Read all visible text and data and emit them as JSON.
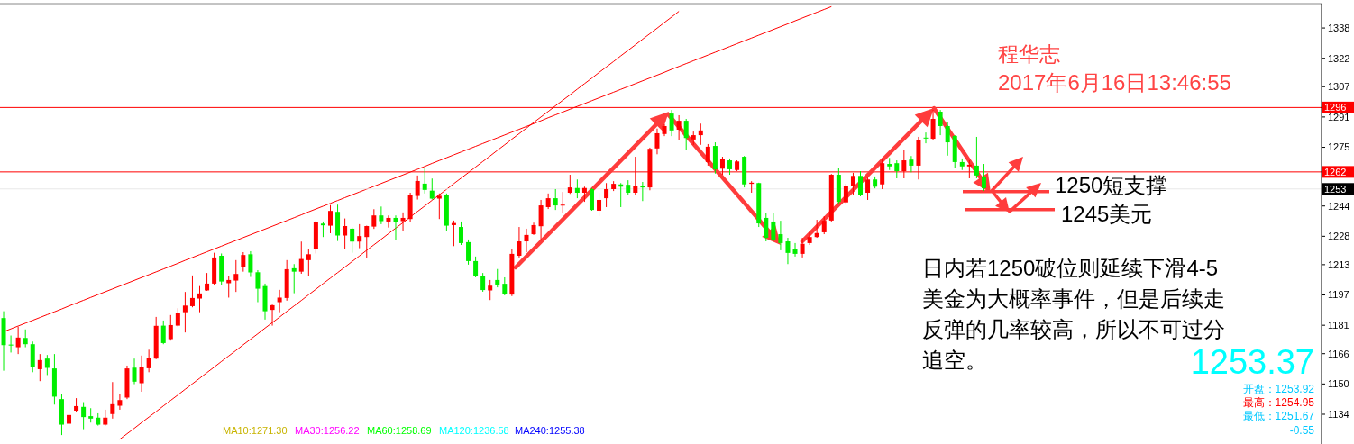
{
  "chart_data": {
    "type": "candlestick",
    "categories": [
      null,
      null,
      null,
      null,
      null,
      null,
      null,
      null,
      null,
      null,
      null,
      null,
      null,
      null,
      null,
      null,
      null,
      null,
      null,
      null,
      null,
      null,
      null,
      null,
      null,
      null,
      null,
      null,
      null,
      null,
      null,
      null,
      null,
      null,
      null,
      null,
      null,
      null,
      null,
      null,
      null,
      null,
      null,
      null,
      null,
      null,
      null,
      null,
      null,
      null,
      null,
      null,
      null,
      null,
      null,
      null,
      null,
      null,
      null,
      null,
      null,
      null,
      null,
      null,
      null,
      null,
      null,
      null,
      null,
      null,
      null,
      null,
      null,
      null,
      null,
      null,
      null,
      null,
      null,
      null,
      null,
      null,
      null,
      null,
      null,
      null,
      null,
      null,
      null,
      null,
      null,
      null,
      null,
      null,
      null,
      null,
      null,
      null,
      null,
      null,
      null,
      null,
      null,
      null,
      null,
      null,
      null,
      null,
      null,
      null,
      null,
      null,
      null,
      null,
      null,
      null,
      null,
      null,
      null,
      null,
      null,
      null,
      null,
      null,
      null,
      null,
      null,
      null,
      null,
      null,
      null,
      null,
      null,
      null,
      null,
      null,
      null,
      null,
      null,
      null,
      null,
      null,
      null,
      null,
      null,
      null,
      null,
      null,
      null,
      null,
      null,
      null,
      null,
      null,
      null,
      null,
      null,
      null,
      null,
      null,
      null,
      null,
      null,
      null,
      null,
      null,
      null,
      null,
      null,
      null,
      null,
      null,
      null,
      null,
      null,
      null,
      null,
      null,
      null,
      null,
      null,
      null
    ],
    "ohlc": [
      [
        1184.8,
        1188.4,
        1157.0,
        1170.5
      ],
      [
        1170.8,
        1175.6,
        1166.6,
        1170.3
      ],
      [
        1169.4,
        1180.3,
        1165.8,
        1174.5
      ],
      [
        1174.3,
        1178.8,
        1169.4,
        1171.0
      ],
      [
        1171.0,
        1172.4,
        1156.2,
        1158.9
      ],
      [
        1157.8,
        1165.8,
        1151.5,
        1162.6
      ],
      [
        1163.4,
        1165.3,
        1154.7,
        1158.5
      ],
      [
        1158.2,
        1165.8,
        1139.1,
        1143.3
      ],
      [
        1142.0,
        1144.8,
        1123.0,
        1128.5
      ],
      [
        1129.0,
        1141.7,
        1126.6,
        1133.6
      ],
      [
        1135.9,
        1142.5,
        1135.2,
        1138.3
      ],
      [
        1137.9,
        1140.4,
        1126.1,
        1132.5
      ],
      [
        1133.0,
        1137.2,
        1129.6,
        1131.7
      ],
      [
        1132.2,
        1134.5,
        1128.0,
        1128.5
      ],
      [
        1128.5,
        1136.4,
        1128.0,
        1132.2
      ],
      [
        1134.1,
        1151.0,
        1131.7,
        1139.3
      ],
      [
        1138.5,
        1144.7,
        1136.4,
        1141.5
      ],
      [
        1142.8,
        1159.7,
        1142.0,
        1158.2
      ],
      [
        1158.6,
        1163.4,
        1149.9,
        1151.2
      ],
      [
        1150.4,
        1165.0,
        1145.9,
        1159.1
      ],
      [
        1158.3,
        1168.1,
        1156.2,
        1163.9
      ],
      [
        1163.4,
        1185.4,
        1163.1,
        1180.7
      ],
      [
        1180.8,
        1183.5,
        1171.0,
        1171.6
      ],
      [
        1173.7,
        1186.4,
        1172.9,
        1181.1
      ],
      [
        1180.8,
        1190.0,
        1180.3,
        1187.6
      ],
      [
        1187.9,
        1198.6,
        1177.2,
        1191.4
      ],
      [
        1191.1,
        1207.3,
        1190.5,
        1195.4
      ],
      [
        1195.1,
        1201.7,
        1187.9,
        1197.8
      ],
      [
        1199.4,
        1208.6,
        1199.2,
        1203.0
      ],
      [
        1203.0,
        1219.3,
        1202.2,
        1216.8
      ],
      [
        1217.7,
        1218.9,
        1202.2,
        1204.1
      ],
      [
        1203.2,
        1207.0,
        1195.6,
        1204.9
      ],
      [
        1204.6,
        1215.4,
        1198.6,
        1208.1
      ],
      [
        1211.7,
        1219.6,
        1209.3,
        1218.1
      ],
      [
        1218.5,
        1220.1,
        1206.5,
        1208.9
      ],
      [
        1209.0,
        1210.1,
        1193.2,
        1200.3
      ],
      [
        1201.7,
        1203.0,
        1184.0,
        1188.4
      ],
      [
        1189.1,
        1191.9,
        1180.8,
        1191.6
      ],
      [
        1193.2,
        1199.7,
        1187.9,
        1195.6
      ],
      [
        1195.4,
        1215.4,
        1194.0,
        1210.6
      ],
      [
        1211.1,
        1213.3,
        1197.9,
        1209.3
      ],
      [
        1209.3,
        1225.2,
        1208.2,
        1216.0
      ],
      [
        1215.4,
        1221.2,
        1207.0,
        1218.5
      ],
      [
        1221.2,
        1236.0,
        1218.9,
        1235.5
      ],
      [
        1234.7,
        1235.8,
        1227.6,
        1233.8
      ],
      [
        1233.6,
        1244.5,
        1229.6,
        1241.4
      ],
      [
        1240.9,
        1244.7,
        1225.5,
        1228.4
      ],
      [
        1228.4,
        1237.4,
        1221.2,
        1233.4
      ],
      [
        1232.0,
        1232.6,
        1219.3,
        1225.2
      ],
      [
        1225.2,
        1234.4,
        1221.7,
        1228.1
      ],
      [
        1227.6,
        1233.6,
        1216.5,
        1233.4
      ],
      [
        1233.1,
        1242.3,
        1231.9,
        1239.0
      ],
      [
        1239.0,
        1243.7,
        1234.4,
        1236.0
      ],
      [
        1235.8,
        1239.0,
        1232.6,
        1237.7
      ],
      [
        1237.7,
        1239.0,
        1226.0,
        1235.5
      ],
      [
        1236.0,
        1240.6,
        1230.7,
        1237.7
      ],
      [
        1237.1,
        1251.0,
        1235.5,
        1249.8
      ],
      [
        1249.3,
        1260.1,
        1247.4,
        1257.2
      ],
      [
        1255.8,
        1264.0,
        1250.6,
        1252.5
      ],
      [
        1252.1,
        1258.5,
        1247.4,
        1247.9
      ],
      [
        1247.9,
        1250.6,
        1237.1,
        1249.4
      ],
      [
        1249.6,
        1250.6,
        1230.7,
        1233.6
      ],
      [
        1233.9,
        1236.3,
        1222.8,
        1235.0
      ],
      [
        1232.9,
        1235.8,
        1223.4,
        1224.4
      ],
      [
        1224.9,
        1226.3,
        1213.0,
        1214.9
      ],
      [
        1214.9,
        1217.3,
        1206.3,
        1207.2
      ],
      [
        1207.2,
        1208.6,
        1198.7,
        1199.6
      ],
      [
        1199.4,
        1204.9,
        1194.3,
        1201.9
      ],
      [
        1204.9,
        1210.7,
        1201.0,
        1202.5
      ],
      [
        1202.9,
        1206.3,
        1196.8,
        1197.7
      ],
      [
        1197.2,
        1221.5,
        1196.4,
        1218.7
      ],
      [
        1217.7,
        1232.9,
        1216.8,
        1225.3
      ],
      [
        1225.3,
        1232.0,
        1219.6,
        1228.7
      ],
      [
        1229.1,
        1235.2,
        1228.7,
        1233.9
      ],
      [
        1233.3,
        1247.2,
        1225.7,
        1244.3
      ],
      [
        1243.4,
        1250.6,
        1242.4,
        1248.1
      ],
      [
        1248.1,
        1252.9,
        1241.9,
        1244.3
      ],
      [
        1244.3,
        1251.4,
        1240.5,
        1244.7
      ],
      [
        1251.0,
        1260.5,
        1250.4,
        1253.8
      ],
      [
        1253.5,
        1258.0,
        1248.1,
        1251.0
      ],
      [
        1251.0,
        1254.2,
        1246.2,
        1253.5
      ],
      [
        1252.9,
        1253.5,
        1241.5,
        1241.9
      ],
      [
        1241.5,
        1251.0,
        1238.6,
        1247.2
      ],
      [
        1248.1,
        1256.1,
        1243.4,
        1252.9
      ],
      [
        1252.9,
        1257.1,
        1251.9,
        1255.7
      ],
      [
        1255.4,
        1256.1,
        1243.4,
        1254.2
      ],
      [
        1255.2,
        1257.6,
        1250.0,
        1251.0
      ],
      [
        1251.0,
        1270.0,
        1250.0,
        1254.8
      ],
      [
        1254.4,
        1256.7,
        1246.6,
        1253.8
      ],
      [
        1253.8,
        1274.8,
        1252.3,
        1274.2
      ],
      [
        1274.4,
        1284.9,
        1271.3,
        1282.4
      ],
      [
        1282.0,
        1287.1,
        1280.9,
        1286.2
      ],
      [
        1292.8,
        1294.7,
        1280.9,
        1283.9
      ],
      [
        1284.3,
        1291.9,
        1278.6,
        1289.0
      ],
      [
        1289.0,
        1290.0,
        1273.8,
        1279.9
      ],
      [
        1279.1,
        1283.3,
        1276.3,
        1281.4
      ],
      [
        1281.4,
        1287.5,
        1276.3,
        1283.9
      ],
      [
        1267.2,
        1276.7,
        1265.3,
        1275.3
      ],
      [
        1275.7,
        1277.6,
        1261.1,
        1263.4
      ],
      [
        1263.7,
        1270.0,
        1260.5,
        1268.7
      ],
      [
        1268.1,
        1269.1,
        1260.5,
        1263.4
      ],
      [
        1263.0,
        1268.1,
        1262.4,
        1267.5
      ],
      [
        1270.0,
        1270.4,
        1253.8,
        1255.4
      ],
      [
        1255.7,
        1257.1,
        1251.0,
        1256.3
      ],
      [
        1256.1,
        1256.3,
        1232.9,
        1234.8
      ],
      [
        1237.7,
        1240.5,
        1225.3,
        1227.2
      ],
      [
        1235.8,
        1240.5,
        1225.3,
        1226.3
      ],
      [
        1229.1,
        1236.2,
        1220.6,
        1224.4
      ],
      [
        1225.3,
        1227.2,
        1213.3,
        1219.2
      ],
      [
        1221.5,
        1224.4,
        1217.3,
        1218.7
      ],
      [
        1218.7,
        1227.2,
        1216.8,
        1224.0
      ],
      [
        1224.4,
        1230.4,
        1223.4,
        1227.6
      ],
      [
        1227.6,
        1236.7,
        1227.2,
        1229.7
      ],
      [
        1230.1,
        1238.6,
        1229.1,
        1236.2
      ],
      [
        1236.3,
        1260.9,
        1235.8,
        1260.5
      ],
      [
        1260.5,
        1264.3,
        1245.3,
        1246.2
      ],
      [
        1245.9,
        1255.7,
        1244.7,
        1254.8
      ],
      [
        1254.8,
        1261.5,
        1250.0,
        1259.9
      ],
      [
        1259.9,
        1262.4,
        1249.1,
        1250.0
      ],
      [
        1251.0,
        1259.0,
        1247.2,
        1258.0
      ],
      [
        1258.0,
        1259.6,
        1253.3,
        1254.2
      ],
      [
        1255.4,
        1269.1,
        1252.9,
        1266.6
      ],
      [
        1266.2,
        1269.4,
        1263.0,
        1264.9
      ],
      [
        1266.6,
        1268.1,
        1258.6,
        1262.4
      ],
      [
        1262.4,
        1273.8,
        1258.6,
        1268.1
      ],
      [
        1268.5,
        1270.4,
        1261.8,
        1265.3
      ],
      [
        1265.3,
        1280.5,
        1258.0,
        1278.6
      ],
      [
        1280.1,
        1282.8,
        1277.1,
        1279.7
      ],
      [
        1279.5,
        1294.7,
        1278.6,
        1290.0
      ],
      [
        1293.8,
        1294.7,
        1281.4,
        1286.2
      ],
      [
        1286.2,
        1288.1,
        1270.6,
        1277.6
      ],
      [
        1281.0,
        1281.4,
        1264.3,
        1267.2
      ],
      [
        1267.2,
        1269.1,
        1263.0,
        1264.9
      ],
      [
        1264.9,
        1268.1,
        1258.6,
        1265.8
      ],
      [
        1265.3,
        1280.5,
        1258.6,
        1260.1
      ],
      [
        1259.6,
        1266.2,
        1251.9,
        1253.4
      ],
      null,
      null,
      null,
      null,
      null,
      null,
      null,
      null,
      null,
      null,
      null,
      null,
      null,
      null,
      null,
      null,
      null,
      null,
      null,
      null,
      null,
      null,
      null,
      null,
      null,
      null,
      null,
      null,
      null,
      null,
      null,
      null,
      null,
      null,
      null,
      null,
      null,
      null,
      null,
      null,
      null,
      null,
      null,
      null,
      null,
      null
    ],
    "series": [
      {
        "type": "line",
        "color": "#ff0000",
        "values": [
          1177.6,
          1179.1,
          1180.6,
          1182.1,
          1183.6,
          1185.1,
          1186.6,
          1188.1,
          1189.6,
          1191.2,
          1192.7,
          1194.2,
          1195.7,
          1197.2,
          1198.7,
          1200.2,
          1201.7,
          1203.2,
          1204.7,
          1206.2,
          1207.7,
          1209.2,
          1210.7,
          1212.2,
          1213.7,
          1215.3,
          1216.8,
          1218.3,
          1219.8,
          1221.3,
          1222.8,
          1224.3,
          1225.8,
          1227.3,
          1228.8,
          1230.3,
          1231.8,
          1233.3,
          1234.8,
          1236.3,
          1237.8,
          1239.3,
          1240.9,
          1242.4,
          1243.9,
          1245.4,
          1246.9,
          1248.4,
          1249.9,
          1251.4,
          1252.9,
          1254.4,
          1255.9,
          1257.4,
          1258.9,
          1260.4,
          1261.9,
          1263.4,
          1264.9,
          1266.5,
          1268.0,
          1269.5,
          1271.0,
          1272.5,
          1274.0,
          1275.5,
          1277.0,
          1278.5,
          1280.0,
          1281.5,
          1283.0,
          1284.5,
          1286.0,
          1287.5,
          1289.0,
          1290.6,
          1292.1,
          1293.6,
          1295.1,
          1296.6,
          1298.1,
          1299.6,
          1301.1,
          1302.6,
          1304.1,
          1305.6,
          1307.1,
          1308.6,
          1310.1,
          1311.6,
          1313.1,
          1314.6,
          1316.2,
          1317.7,
          1319.2,
          1320.7,
          1322.2,
          1323.7,
          1325.2,
          1326.7,
          1328.2,
          1329.7,
          1331.2,
          1332.7,
          1334.2,
          1335.7,
          1337.2,
          1338.7,
          1340.2,
          1341.8,
          1343.3,
          1344.8,
          1346.3,
          1347.8,
          1349.3,
          null,
          null,
          null,
          null,
          null,
          null,
          null,
          null,
          null,
          null,
          null,
          null,
          null,
          null,
          null,
          null,
          null,
          null,
          null,
          null,
          null,
          null,
          null,
          null,
          null,
          null,
          null,
          null,
          null,
          null,
          null,
          null,
          null,
          null,
          null,
          null,
          null,
          null,
          null,
          null,
          null,
          null,
          null,
          null,
          null,
          null,
          null,
          null,
          null,
          null,
          null,
          null,
          null,
          null,
          null,
          null,
          null,
          null,
          null,
          null,
          null,
          null,
          null,
          null,
          null,
          null,
          null
        ]
      },
      {
        "type": "line",
        "color": "#ff0000",
        "values": [
          null,
          null,
          null,
          null,
          null,
          null,
          null,
          null,
          null,
          null,
          null,
          null,
          null,
          null,
          null,
          null,
          1120.8,
          1123.7,
          1126.6,
          1129.6,
          1132.5,
          1135.4,
          1138.4,
          1141.3,
          1144.2,
          1147.2,
          1150.1,
          1153.0,
          1156.0,
          1158.9,
          1161.9,
          1164.8,
          1167.7,
          1170.7,
          1173.6,
          1176.5,
          1179.5,
          1182.4,
          1185.3,
          1188.3,
          1191.2,
          1194.1,
          1197.1,
          1200.0,
          1203.0,
          1205.9,
          1208.8,
          1211.7,
          1214.7,
          1217.6,
          1220.6,
          1223.5,
          1226.4,
          1229.4,
          1232.3,
          1235.2,
          1238.2,
          1241.1,
          1244.0,
          1247.0,
          1249.9,
          1252.8,
          1255.8,
          1258.7,
          1261.6,
          1264.6,
          1267.5,
          1270.4,
          1273.4,
          1276.3,
          1279.3,
          1282.2,
          1285.1,
          1288.1,
          1291.0,
          1293.9,
          1296.9,
          1299.8,
          1302.7,
          1305.7,
          1308.6,
          1311.5,
          1314.5,
          1317.4,
          1320.3,
          1323.3,
          1326.2,
          1329.1,
          1332.1,
          1335.0,
          1337.9,
          1340.9,
          1343.8,
          1346.8,
          null,
          null,
          null,
          null,
          null,
          null,
          null,
          null,
          null,
          null,
          null,
          null,
          null,
          null,
          null,
          null,
          null,
          null,
          null,
          null,
          null,
          null,
          null,
          null,
          null,
          null,
          null,
          null,
          null,
          null,
          null,
          null,
          null,
          null,
          null,
          null,
          null,
          null,
          null,
          null,
          null,
          null,
          null,
          null,
          null,
          null,
          null,
          null,
          null,
          null,
          null,
          null,
          null,
          null,
          null,
          null,
          null,
          null,
          null,
          null,
          null,
          null,
          null,
          null,
          null,
          null,
          null,
          null,
          null,
          null,
          null,
          null,
          null,
          null,
          null,
          null,
          null,
          null,
          null,
          null,
          null,
          null,
          null,
          null,
          null,
          null,
          null,
          null
        ]
      }
    ],
    "ylim": [
      1118.3,
      1350.4
    ],
    "yticks": [
      1338,
      1322,
      1307,
      1291,
      1275,
      {
        "value": 1260,
        "label": null
      },
      1244,
      1228,
      1213,
      1197,
      1181,
      1166,
      1150,
      1134
    ],
    "tick_labels": "y",
    "ref_lines": [
      {
        "axis": "y",
        "value": 1296,
        "label": "1296",
        "color": "#ff0000"
      },
      {
        "axis": "y",
        "value": 1262,
        "label": "1262",
        "color": "#ff0000"
      },
      {
        "axis": "y",
        "value": 1253,
        "label": "1253",
        "color": "#e8e8e8"
      }
    ],
    "annotations": [
      "程华志",
      "2017年6月16日13:46:55",
      "1250短支撑",
      "1245美元",
      "日内若1250破位则延续下滑4-5美金为大概率事件，但是后续走反弹的几率较高，所以不可过分追空。",
      "1253.37",
      "开盘：1253.92",
      "最高：1254.95",
      "最低：1251.67",
      "-0.55",
      "MA10:1271.30",
      "MA30:1256.22",
      "MA60:1258.69",
      "MA120:1236.58",
      "MA240:1255.38"
    ]
  }
}
